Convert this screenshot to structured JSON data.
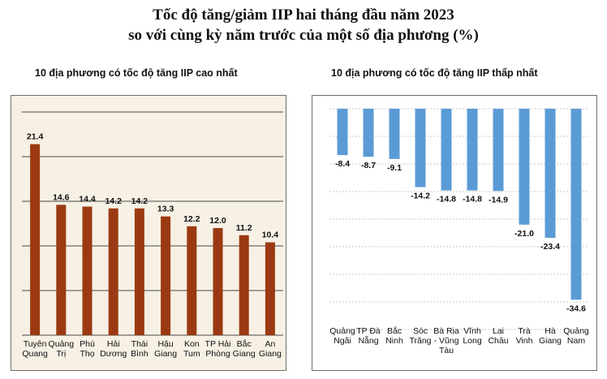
{
  "title_line1": "Tốc độ tăng/giảm IIP hai tháng đầu năm 2023",
  "title_line2": "so với cùng kỳ năm trước của một số địa phương (%)",
  "chart_data": [
    {
      "type": "bar",
      "title": "10 địa phương có tốc độ tăng IIP cao nhất",
      "categories": [
        [
          "Tuyên",
          "Quang"
        ],
        [
          "Quảng",
          "Trị"
        ],
        [
          "Phú",
          "Thọ"
        ],
        [
          "Hải",
          "Dương"
        ],
        [
          "Thái",
          "Bình"
        ],
        [
          "Hậu",
          "Giang"
        ],
        [
          "Kon",
          "Tum"
        ],
        [
          "TP Hải",
          "Phòng"
        ],
        [
          "Bắc",
          "Giang"
        ],
        [
          "An",
          "Giang"
        ]
      ],
      "values": [
        21.4,
        14.6,
        14.4,
        14.2,
        14.2,
        13.3,
        12.2,
        12.0,
        11.2,
        10.4
      ],
      "value_labels": [
        "21.4",
        "14.6",
        "14.4",
        "14.2",
        "14.2",
        "13.3",
        "12.2",
        "12.0",
        "11.2",
        "10.4"
      ],
      "ylim": [
        0,
        25
      ],
      "gridlines": [
        0,
        5,
        10,
        15,
        20,
        25
      ],
      "grid": true,
      "background": "#f7f0e4",
      "bar_color": "#9b3a12"
    },
    {
      "type": "bar",
      "title": "10 địa phương có tốc độ tăng IIP thấp nhất",
      "categories": [
        [
          "Quảng",
          "Ngãi"
        ],
        [
          "TP Đà",
          "Nẵng"
        ],
        [
          "Bắc",
          "Ninh"
        ],
        [
          "Sóc",
          "Trăng"
        ],
        [
          "Bà Rịa",
          "- Vũng",
          "Tàu"
        ],
        [
          "Vĩnh",
          "Long"
        ],
        [
          "Lai",
          "Châu"
        ],
        [
          "Trà",
          "Vinh"
        ],
        [
          "Hà",
          "Giang"
        ],
        [
          "Quảng",
          "Nam"
        ]
      ],
      "values": [
        -8.4,
        -8.7,
        -9.1,
        -14.2,
        -14.8,
        -14.8,
        -14.9,
        -21.0,
        -23.4,
        -34.6
      ],
      "value_labels": [
        "-8.4",
        "-8.7",
        "-9.1",
        "-14.2",
        "-14.8",
        "-14.8",
        "-14.9",
        "-21.0",
        "-23.4",
        "-34.6"
      ],
      "ylim": [
        -40,
        0
      ],
      "gridlines": [
        0,
        -5,
        -10,
        -15,
        -20,
        -25,
        -30,
        -35,
        -40
      ],
      "grid": true,
      "background": "#ffffff",
      "bar_color": "#5b9bd5"
    }
  ]
}
